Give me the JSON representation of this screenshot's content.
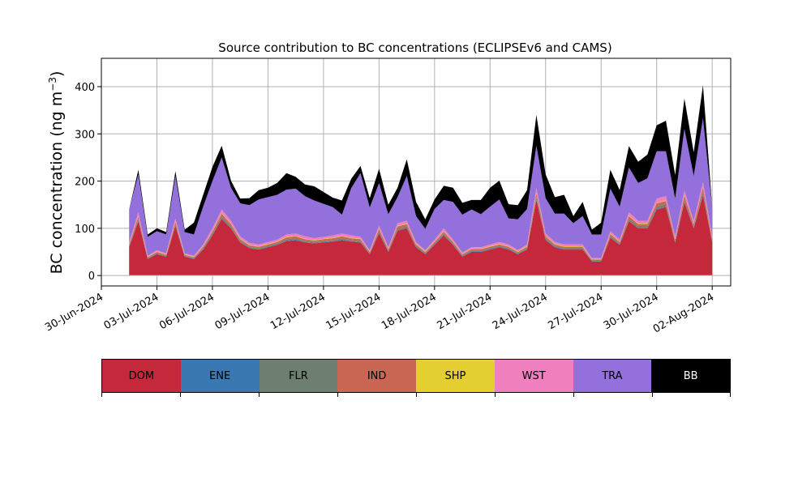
{
  "chart_data": {
    "type": "area",
    "stacked": true,
    "title": "Source contribution to BC concentrations (ECLIPSEv6 and CAMS)",
    "ylabel": "BC concentration (ng m",
    "ylabel_superscript": "−3",
    "ylabel_suffix": ")",
    "xlabel": "",
    "ylim": [
      -22,
      460
    ],
    "xlim": [
      "2024-06-30",
      "2024-08-03"
    ],
    "yticks": [
      0,
      100,
      200,
      300,
      400
    ],
    "xtick_labels": [
      "30-Jun-2024",
      "03-Jul-2024",
      "06-Jul-2024",
      "09-Jul-2024",
      "12-Jul-2024",
      "15-Jul-2024",
      "18-Jul-2024",
      "21-Jul-2024",
      "24-Jul-2024",
      "27-Jul-2024",
      "30-Jul-2024",
      "02-Aug-2024"
    ],
    "xtick_dates": [
      "2024-06-30",
      "2024-07-03",
      "2024-07-06",
      "2024-07-09",
      "2024-07-12",
      "2024-07-15",
      "2024-07-18",
      "2024-07-21",
      "2024-07-24",
      "2024-07-27",
      "2024-07-30",
      "2024-08-02"
    ],
    "grid": true,
    "legend_position": "below",
    "x": [
      "2024-07-01 12:00",
      "2024-07-02",
      "2024-07-02 12:00",
      "2024-07-03",
      "2024-07-03 12:00",
      "2024-07-04",
      "2024-07-04 12:00",
      "2024-07-05",
      "2024-07-05 12:00",
      "2024-07-06",
      "2024-07-06 12:00",
      "2024-07-07",
      "2024-07-07 12:00",
      "2024-07-08",
      "2024-07-08 12:00",
      "2024-07-09",
      "2024-07-09 12:00",
      "2024-07-10",
      "2024-07-10 12:00",
      "2024-07-11",
      "2024-07-11 12:00",
      "2024-07-12",
      "2024-07-12 12:00",
      "2024-07-13",
      "2024-07-13 12:00",
      "2024-07-14",
      "2024-07-14 12:00",
      "2024-07-15",
      "2024-07-15 12:00",
      "2024-07-16",
      "2024-07-16 12:00",
      "2024-07-17",
      "2024-07-17 12:00",
      "2024-07-18",
      "2024-07-18 12:00",
      "2024-07-19",
      "2024-07-19 12:00",
      "2024-07-20",
      "2024-07-20 12:00",
      "2024-07-21",
      "2024-07-21 12:00",
      "2024-07-22",
      "2024-07-22 12:00",
      "2024-07-23",
      "2024-07-23 12:00",
      "2024-07-24",
      "2024-07-24 12:00",
      "2024-07-25",
      "2024-07-25 12:00",
      "2024-07-26",
      "2024-07-26 12:00",
      "2024-07-27",
      "2024-07-27 12:00",
      "2024-07-28",
      "2024-07-28 12:00",
      "2024-07-29",
      "2024-07-29 12:00",
      "2024-07-30",
      "2024-07-30 12:00",
      "2024-07-31",
      "2024-07-31 12:00",
      "2024-08-01",
      "2024-08-01 12:00",
      "2024-08-02"
    ],
    "series": [
      {
        "name": "DOM",
        "color": "#c5283a",
        "values": [
          60,
          115,
          35,
          45,
          40,
          105,
          40,
          35,
          55,
          85,
          120,
          100,
          70,
          58,
          55,
          60,
          65,
          73,
          75,
          70,
          68,
          70,
          72,
          75,
          72,
          70,
          45,
          90,
          50,
          95,
          100,
          60,
          45,
          65,
          85,
          65,
          40,
          50,
          50,
          55,
          60,
          55,
          45,
          55,
          160,
          75,
          60,
          55,
          55,
          55,
          30,
          30,
          80,
          65,
          115,
          100,
          100,
          140,
          145,
          70,
          155,
          100,
          170,
          70
        ]
      },
      {
        "name": "ENE",
        "color": "#3a78b1",
        "values": [
          1,
          1,
          1,
          1,
          1,
          1,
          1,
          1,
          1,
          1,
          1,
          1,
          1,
          1,
          1,
          1,
          1,
          1,
          1,
          1,
          1,
          1,
          1,
          1,
          1,
          1,
          1,
          1,
          1,
          1,
          1,
          1,
          1,
          1,
          1,
          1,
          1,
          1,
          1,
          1,
          1,
          1,
          1,
          1,
          1,
          1,
          1,
          1,
          1,
          1,
          1,
          1,
          1,
          1,
          1,
          1,
          1,
          1,
          1,
          1,
          1,
          1,
          1,
          1
        ]
      },
      {
        "name": "FLR",
        "color": "#6e7f71",
        "values": [
          2,
          3,
          1,
          2,
          1,
          3,
          1,
          1,
          2,
          3,
          4,
          3,
          2,
          2,
          2,
          2,
          2,
          3,
          3,
          2,
          2,
          2,
          2,
          3,
          2,
          2,
          2,
          3,
          2,
          3,
          3,
          2,
          2,
          2,
          3,
          2,
          2,
          2,
          2,
          2,
          2,
          2,
          2,
          2,
          5,
          3,
          2,
          2,
          2,
          2,
          1,
          1,
          3,
          2,
          4,
          3,
          3,
          5,
          5,
          2,
          5,
          3,
          6,
          3
        ]
      },
      {
        "name": "IND",
        "color": "#ca6654",
        "values": [
          3,
          6,
          2,
          2,
          2,
          5,
          2,
          2,
          3,
          4,
          6,
          5,
          4,
          3,
          3,
          3,
          3,
          4,
          4,
          4,
          3,
          4,
          4,
          4,
          4,
          4,
          2,
          5,
          3,
          5,
          5,
          3,
          2,
          3,
          4,
          3,
          2,
          3,
          3,
          3,
          3,
          3,
          2,
          3,
          8,
          4,
          3,
          3,
          3,
          3,
          2,
          2,
          4,
          3,
          6,
          5,
          5,
          7,
          7,
          4,
          8,
          5,
          9,
          4
        ]
      },
      {
        "name": "SHP",
        "color": "#e5ce2f",
        "values": [
          1,
          1,
          1,
          1,
          1,
          1,
          1,
          1,
          1,
          1,
          1,
          1,
          1,
          1,
          1,
          1,
          1,
          1,
          1,
          1,
          1,
          1,
          1,
          1,
          1,
          1,
          1,
          1,
          1,
          1,
          1,
          1,
          1,
          1,
          1,
          1,
          1,
          1,
          1,
          1,
          1,
          1,
          1,
          1,
          1,
          1,
          1,
          1,
          1,
          1,
          1,
          1,
          1,
          1,
          1,
          1,
          1,
          1,
          1,
          1,
          1,
          1,
          1,
          1
        ]
      },
      {
        "name": "WST",
        "color": "#f07fbf",
        "values": [
          3,
          8,
          2,
          3,
          2,
          6,
          2,
          2,
          4,
          6,
          8,
          6,
          5,
          4,
          4,
          4,
          4,
          5,
          5,
          5,
          4,
          4,
          5,
          5,
          5,
          4,
          3,
          6,
          3,
          6,
          6,
          4,
          3,
          4,
          6,
          4,
          3,
          3,
          3,
          4,
          4,
          4,
          3,
          4,
          10,
          5,
          4,
          4,
          4,
          4,
          2,
          2,
          5,
          4,
          7,
          6,
          6,
          9,
          9,
          5,
          10,
          6,
          11,
          5
        ]
      },
      {
        "name": "TRA",
        "color": "#9370db",
        "values": [
          70,
          80,
          40,
          40,
          40,
          90,
          45,
          45,
          80,
          100,
          110,
          70,
          70,
          80,
          95,
          95,
          95,
          95,
          95,
          85,
          80,
          70,
          60,
          40,
          100,
          135,
          90,
          90,
          70,
          55,
          95,
          55,
          45,
          65,
          60,
          80,
          80,
          80,
          70,
          80,
          90,
          55,
          65,
          75,
          90,
          75,
          60,
          65,
          45,
          60,
          50,
          50,
          90,
          70,
          95,
          80,
          90,
          100,
          95,
          80,
          130,
          95,
          135,
          60
        ]
      },
      {
        "name": "BB",
        "color": "#000000",
        "values": [
          0,
          10,
          5,
          6,
          5,
          10,
          5,
          25,
          25,
          30,
          25,
          15,
          10,
          15,
          20,
          20,
          25,
          35,
          25,
          25,
          30,
          25,
          20,
          30,
          20,
          15,
          20,
          30,
          20,
          20,
          35,
          30,
          20,
          20,
          30,
          30,
          25,
          20,
          30,
          40,
          40,
          30,
          30,
          40,
          65,
          50,
          35,
          40,
          15,
          30,
          10,
          25,
          40,
          35,
          45,
          45,
          50,
          55,
          65,
          50,
          65,
          50,
          70,
          0
        ]
      }
    ]
  },
  "legend": {
    "items": [
      {
        "label": "DOM",
        "color": "#c5283a",
        "text_color": "#000000"
      },
      {
        "label": "ENE",
        "color": "#3a78b1",
        "text_color": "#000000"
      },
      {
        "label": "FLR",
        "color": "#6e7f71",
        "text_color": "#000000"
      },
      {
        "label": "IND",
        "color": "#ca6654",
        "text_color": "#000000"
      },
      {
        "label": "SHP",
        "color": "#e5ce2f",
        "text_color": "#000000"
      },
      {
        "label": "WST",
        "color": "#f07fbf",
        "text_color": "#000000"
      },
      {
        "label": "TRA",
        "color": "#9370db",
        "text_color": "#000000"
      },
      {
        "label": "BB",
        "color": "#000000",
        "text_color": "#ffffff"
      }
    ]
  }
}
